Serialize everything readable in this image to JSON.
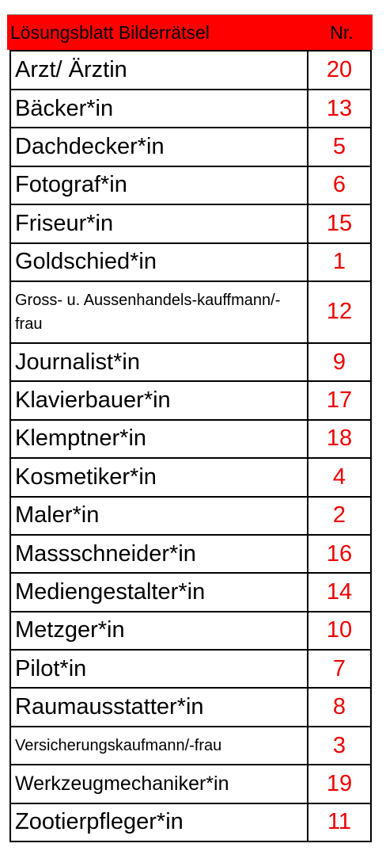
{
  "header": {
    "title": "Lösungsblatt Bilderrätsel",
    "nr_label": "Nr."
  },
  "rows": [
    {
      "name": "Arzt/ Ärztin",
      "nr": "20"
    },
    {
      "name": "Bäcker*in",
      "nr": "13"
    },
    {
      "name": "Dachdecker*in",
      "nr": "5"
    },
    {
      "name": "Fotograf*in",
      "nr": "6"
    },
    {
      "name": "Friseur*in",
      "nr": "15"
    },
    {
      "name": "Goldschied*in",
      "nr": "1"
    },
    {
      "name": "Gross- u. Aussenhandels-kauffmann/-frau",
      "nr": "12"
    },
    {
      "name": "Journalist*in",
      "nr": "9"
    },
    {
      "name": "Klavierbauer*in",
      "nr": "17"
    },
    {
      "name": "Klemptner*in",
      "nr": "18"
    },
    {
      "name": "Kosmetiker*in",
      "nr": "4"
    },
    {
      "name": "Maler*in",
      "nr": "2"
    },
    {
      "name": "Massschneider*in",
      "nr": "16"
    },
    {
      "name": "Mediengestalter*in",
      "nr": "14"
    },
    {
      "name": "Metzger*in",
      "nr": "10"
    },
    {
      "name": "Pilot*in",
      "nr": "7"
    },
    {
      "name": "Raumausstatter*in",
      "nr": "8"
    },
    {
      "name": "Versicherungskaufmann/-frau",
      "nr": "3"
    },
    {
      "name": "Werkzeugmechaniker*in",
      "nr": "19"
    },
    {
      "name": "Zootierpfleger*in",
      "nr": "11"
    }
  ],
  "colors": {
    "header_bg": "#fe0000",
    "number_text": "#ee0000"
  }
}
